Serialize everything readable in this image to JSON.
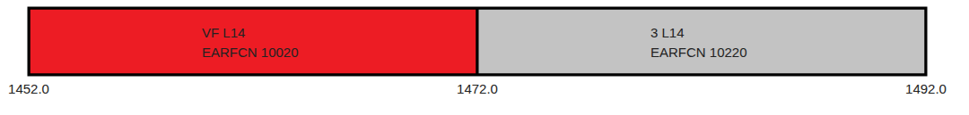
{
  "chart_data": {
    "type": "range",
    "orientation": "horizontal",
    "xlim": [
      1452,
      1492
    ],
    "xticks": [
      {
        "value": 1452,
        "label": "1452.0"
      },
      {
        "value": 1472,
        "label": "1472.0"
      },
      {
        "value": 1492,
        "label": "1492.0"
      }
    ],
    "series": [
      {
        "name": "VF L14",
        "text": "EARFCN 10020",
        "color": "#ed1c24",
        "start": 1452,
        "end": 1472
      },
      {
        "name": "3 L14",
        "text": "EARFCN 10220",
        "color": "#c3c3c3",
        "start": 1472,
        "end": 1492
      }
    ]
  }
}
